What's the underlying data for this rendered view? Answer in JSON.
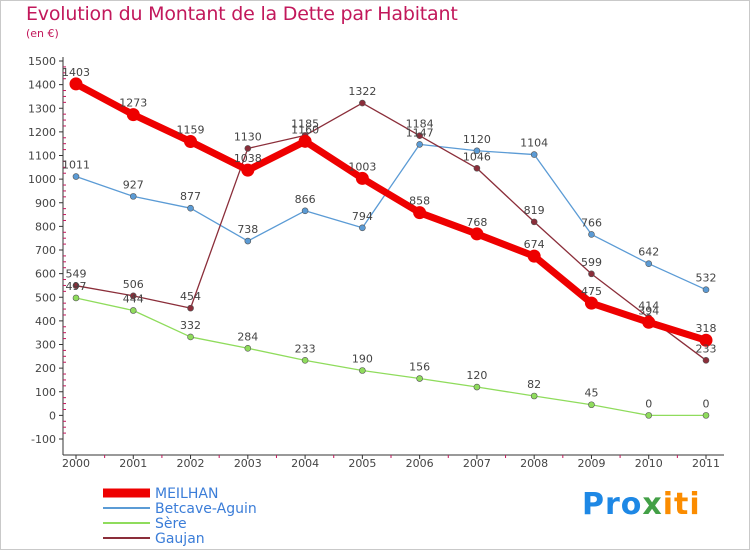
{
  "title": "Evolution du Montant de la Dette par Habitant",
  "subtitle": "(en €)",
  "brand": {
    "part1": "Pro",
    "part2": "x",
    "part3": "iti"
  },
  "chart_data": {
    "type": "line",
    "title": "Evolution du Montant de la Dette par Habitant",
    "subtitle": "(en €)",
    "x": [
      "2000",
      "2001",
      "2002",
      "2003",
      "2004",
      "2005",
      "2006",
      "2007",
      "2008",
      "2009",
      "2010",
      "2011"
    ],
    "y_ticks": [
      "-100",
      "0",
      "100",
      "200",
      "300",
      "400",
      "500",
      "600",
      "700",
      "800",
      "900",
      "1000",
      "1100",
      "1200",
      "1300",
      "1400",
      "1500"
    ],
    "ylim": [
      -100,
      1500
    ],
    "grid": false,
    "legend_position": "bottom-left",
    "series": [
      {
        "name": "MEILHAN",
        "color": "#ee0000",
        "values": [
          1403,
          1273,
          1159,
          1038,
          1160,
          1003,
          858,
          768,
          674,
          475,
          394,
          318
        ],
        "labels": [
          "1403",
          "1273",
          "1159",
          "1038",
          "1160",
          "1003",
          "858",
          "768",
          "674",
          "475",
          "394",
          "318"
        ]
      },
      {
        "name": "Betcave-Aguin",
        "color": "#5b9bd5",
        "values": [
          1011,
          927,
          877,
          738,
          866,
          794,
          1147,
          1120,
          1104,
          766,
          642,
          532
        ],
        "labels": [
          "1011",
          "927",
          "877",
          "738",
          "866",
          "794",
          "1147",
          "1120",
          "1104",
          "766",
          "642",
          "532"
        ]
      },
      {
        "name": "Sère",
        "color": "#8fdc5c",
        "values": [
          497,
          444,
          332,
          284,
          233,
          190,
          156,
          120,
          82,
          45,
          0,
          0
        ],
        "labels": [
          "497",
          "444",
          "332",
          "284",
          "233",
          "190",
          "156",
          "120",
          "82",
          "45",
          "0",
          "0"
        ]
      },
      {
        "name": "Gaujan",
        "color": "#8b2e3a",
        "values": [
          549,
          506,
          454,
          1130,
          1185,
          1322,
          1184,
          1046,
          819,
          599,
          414,
          233
        ],
        "labels": [
          "549",
          "506",
          "454",
          "1130",
          "1185",
          "1322",
          "1184",
          "1046",
          "819",
          "599",
          "414",
          "233"
        ]
      }
    ]
  }
}
